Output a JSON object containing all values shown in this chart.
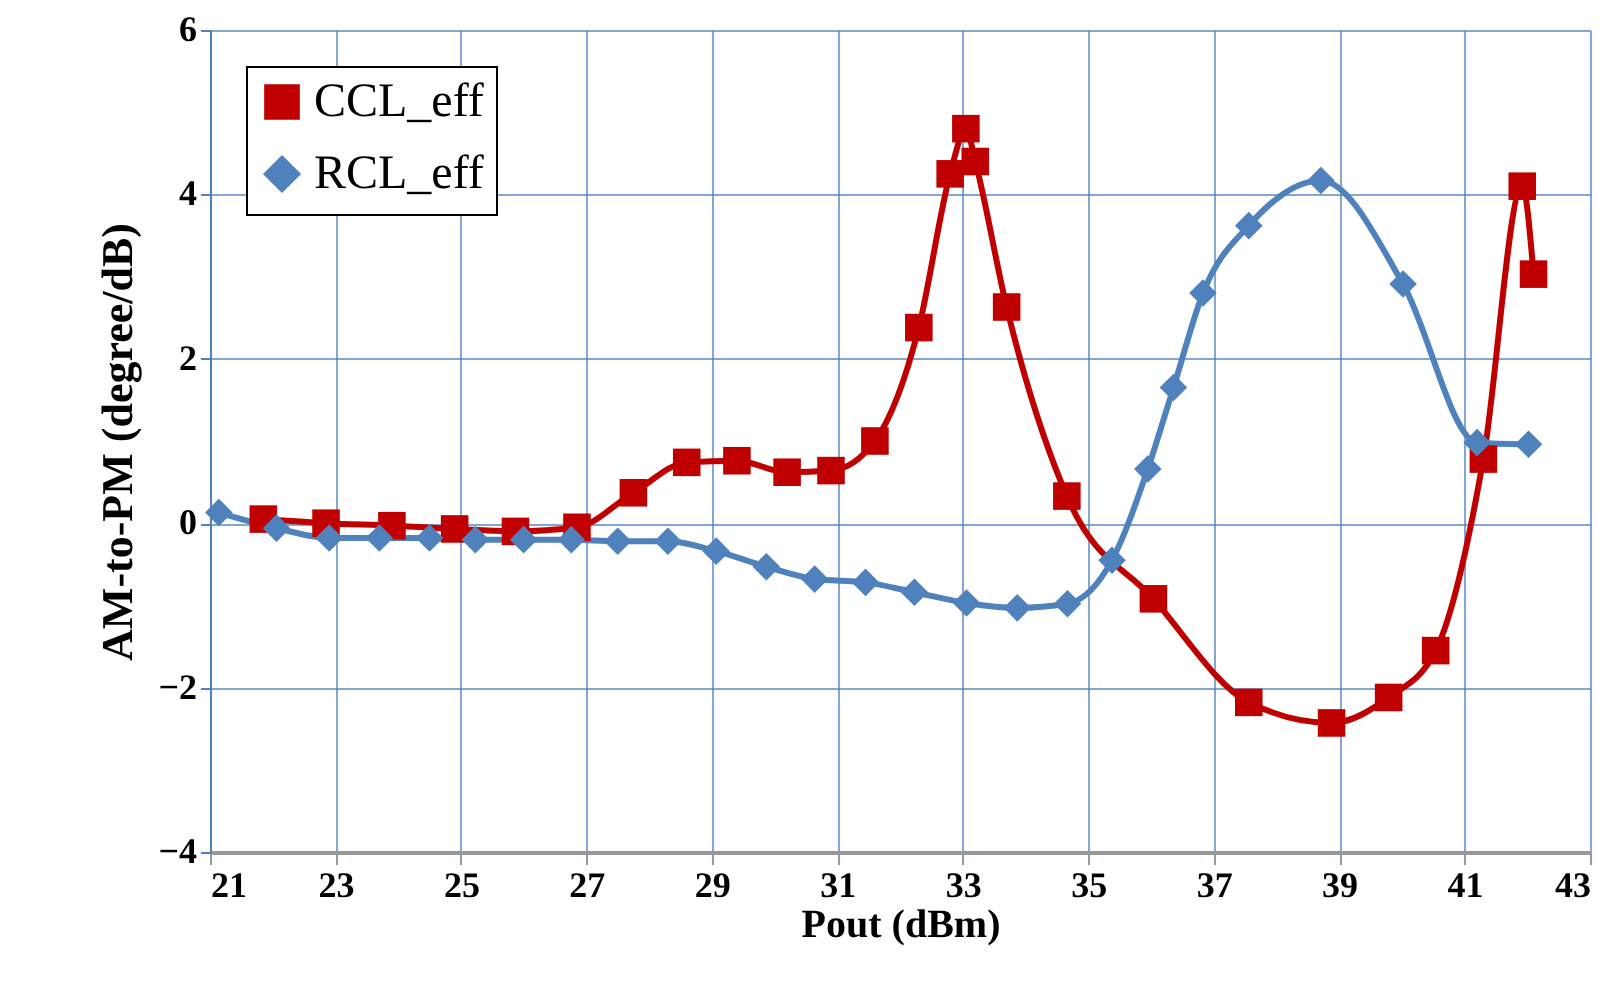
{
  "chart_data": {
    "type": "line",
    "xlabel": "Pout (dBm)",
    "ylabel": "AM-to-PM  (degree/dB)",
    "xlim": [
      21,
      43
    ],
    "xticks": [
      21,
      23,
      25,
      27,
      29,
      31,
      33,
      35,
      37,
      39,
      41,
      43
    ],
    "ylim": [
      -4,
      6
    ],
    "yticks": [
      -4,
      -2,
      0,
      2,
      4,
      6
    ],
    "grid": true,
    "legend": "top left",
    "line_style": "solid",
    "series": [
      {
        "name": "CCL_eff",
        "color": "#c00000",
        "marker": "square",
        "x": [
          21.85,
          22.85,
          23.9,
          24.9,
          25.87,
          26.85,
          27.75,
          28.6,
          29.4,
          30.2,
          30.9,
          31.6,
          32.3,
          32.8,
          33.05,
          33.2,
          33.7,
          34.66,
          36.04,
          37.56,
          38.88,
          39.79,
          40.54,
          41.3,
          41.92,
          42.1
        ],
        "values": [
          0.05,
          0.0,
          -0.03,
          -0.07,
          -0.1,
          -0.05,
          0.37,
          0.74,
          0.76,
          0.62,
          0.64,
          1.0,
          2.38,
          4.25,
          4.8,
          4.4,
          2.63,
          0.33,
          -0.92,
          -2.18,
          -2.43,
          -2.12,
          -1.55,
          0.78,
          4.1,
          3.03
        ]
      },
      {
        "name": "RCL_eff",
        "color": "#4f81bd",
        "marker": "diamond",
        "x": [
          21.14,
          22.06,
          22.9,
          23.7,
          24.5,
          25.23,
          26.0,
          26.76,
          27.5,
          28.3,
          29.07,
          29.87,
          30.64,
          31.45,
          32.23,
          33.06,
          33.87,
          34.67,
          35.38,
          35.95,
          36.36,
          36.83,
          37.56,
          38.71,
          40.02,
          41.2,
          42.02
        ],
        "values": [
          0.13,
          -0.06,
          -0.18,
          -0.18,
          -0.18,
          -0.2,
          -0.2,
          -0.2,
          -0.22,
          -0.22,
          -0.34,
          -0.53,
          -0.68,
          -0.72,
          -0.84,
          -0.97,
          -1.03,
          -0.98,
          -0.45,
          0.66,
          1.65,
          2.8,
          3.62,
          4.17,
          2.91,
          0.98,
          0.96
        ]
      }
    ]
  }
}
